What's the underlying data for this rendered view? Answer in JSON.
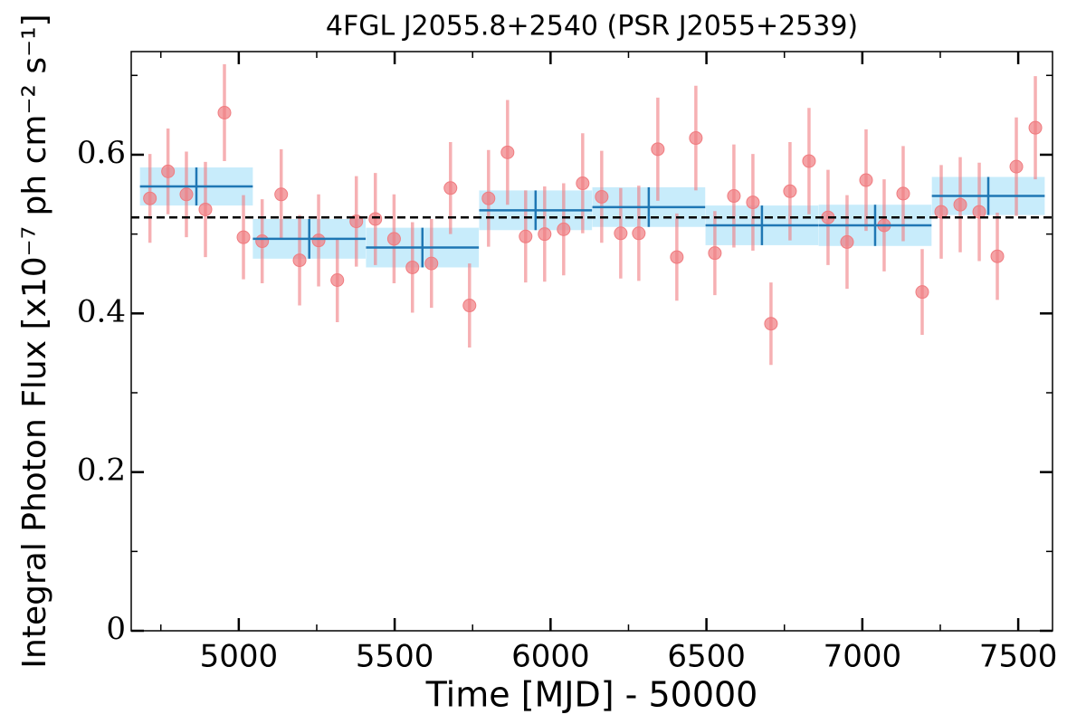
{
  "chart_data": {
    "type": "errorbar",
    "title": "4FGL J2055.8+2540 (PSR J2055+2539)",
    "xlabel": "Time [MJD] - 50000",
    "ylabel": "Integral Photon Flux [x10⁻⁷ ph cm⁻² s⁻¹]",
    "xlim": [
      4655,
      7610
    ],
    "ylim": [
      0,
      0.73
    ],
    "xticks": [
      5000,
      5500,
      6000,
      6500,
      7000,
      7500
    ],
    "yticks": [
      0,
      0.2,
      0.4,
      0.6
    ],
    "xminorticks": [
      4750,
      5250,
      5750,
      6250,
      6750,
      7250
    ],
    "yminorticks": [
      0.1,
      0.3,
      0.5,
      0.7
    ],
    "mean": 0.521,
    "points": {
      "color": "#f07c80",
      "x": [
        4715,
        4773,
        4832,
        4893,
        4954,
        5015,
        5075,
        5136,
        5195,
        5256,
        5316,
        5377,
        5438,
        5498,
        5557,
        5618,
        5679,
        5740,
        5801,
        5862,
        5920,
        5981,
        6042,
        6103,
        6164,
        6225,
        6283,
        6344,
        6405,
        6466,
        6527,
        6588,
        6649,
        6707,
        6768,
        6829,
        6890,
        6951,
        7012,
        7070,
        7131,
        7192,
        7253,
        7314,
        7375,
        7433,
        7494,
        7555
      ],
      "values": [
        0.545,
        0.579,
        0.55,
        0.531,
        0.653,
        0.496,
        0.491,
        0.55,
        0.467,
        0.492,
        0.442,
        0.516,
        0.519,
        0.494,
        0.458,
        0.463,
        0.558,
        0.41,
        0.545,
        0.603,
        0.497,
        0.5,
        0.506,
        0.564,
        0.547,
        0.501,
        0.501,
        0.607,
        0.471,
        0.621,
        0.476,
        0.548,
        0.54,
        0.387,
        0.554,
        0.592,
        0.521,
        0.49,
        0.568,
        0.511,
        0.551,
        0.427,
        0.528,
        0.537,
        0.528,
        0.472,
        0.585,
        0.634
      ],
      "errors": [
        0.056,
        0.054,
        0.054,
        0.06,
        0.061,
        0.053,
        0.053,
        0.057,
        0.057,
        0.058,
        0.053,
        0.057,
        0.058,
        0.056,
        0.057,
        0.056,
        0.058,
        0.053,
        0.061,
        0.066,
        0.058,
        0.06,
        0.058,
        0.063,
        0.058,
        0.057,
        0.06,
        0.065,
        0.055,
        0.066,
        0.053,
        0.065,
        0.061,
        0.052,
        0.062,
        0.067,
        0.06,
        0.059,
        0.064,
        0.058,
        0.06,
        0.054,
        0.059,
        0.06,
        0.062,
        0.055,
        0.062,
        0.065
      ]
    },
    "binned": {
      "color": "#1f77b4",
      "box_color": "#c8ecfb",
      "x": [
        4864,
        5226,
        5589,
        5952,
        6315,
        6678,
        7041,
        7404
      ],
      "xerr": [
        181,
        181,
        181,
        181,
        181,
        181,
        181,
        181
      ],
      "values": [
        0.56,
        0.494,
        0.483,
        0.53,
        0.534,
        0.511,
        0.511,
        0.548
      ],
      "errors": [
        0.024,
        0.025,
        0.025,
        0.025,
        0.025,
        0.025,
        0.026,
        0.024
      ]
    }
  }
}
